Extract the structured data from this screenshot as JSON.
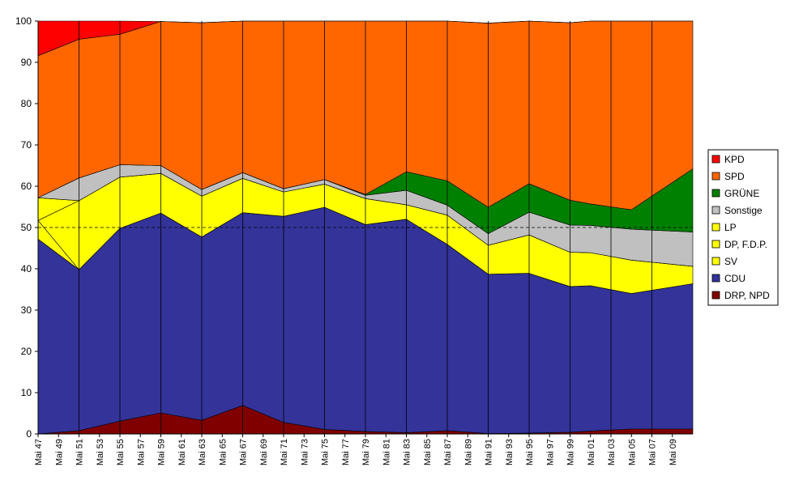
{
  "chart_data": {
    "type": "area",
    "stacked": true,
    "ylim": [
      0,
      100
    ],
    "yticks": [
      "0",
      "10",
      "20",
      "30",
      "40",
      "50",
      "60",
      "70",
      "80",
      "90",
      "100"
    ],
    "reference_line": 50,
    "x_tick_labels": [
      "Mai 47",
      "Mai 49",
      "Mai 51",
      "Mai 53",
      "Mai 55",
      "Mai 57",
      "Mai 59",
      "Mai 61",
      "Mai 63",
      "Mai 65",
      "Mai 67",
      "Mai 69",
      "Mai 71",
      "Mai 73",
      "Mai 75",
      "Mai 77",
      "Mai 79",
      "Mai 81",
      "Mai 83",
      "Mai 85",
      "Mai 87",
      "Mai 89",
      "Mai 91",
      "Mai 93",
      "Mai 95",
      "Mai 97",
      "Mai 99",
      "Mai 01",
      "Mai 03",
      "Mai 05",
      "Mai 07",
      "Mai 09"
    ],
    "x_tick_years": [
      1947,
      1949,
      1951,
      1953,
      1955,
      1957,
      1959,
      1961,
      1963,
      1965,
      1967,
      1969,
      1971,
      1973,
      1975,
      1977,
      1979,
      1981,
      1983,
      1985,
      1987,
      1989,
      1991,
      1993,
      1995,
      1997,
      1999,
      2001,
      2003,
      2005,
      2007,
      2009
    ],
    "x_domain": [
      1947,
      2011
    ],
    "election_years": [
      1947,
      1951,
      1955,
      1959,
      1963,
      1967,
      1971,
      1975,
      1979,
      1983,
      1987,
      1991,
      1995,
      1999,
      2001,
      2005,
      2011
    ],
    "legend_position": "right",
    "series": [
      {
        "name": "DRP, NPD",
        "color": "#800000",
        "values": [
          0.0,
          0.8,
          3.1,
          5.1,
          3.3,
          6.9,
          2.8,
          1.1,
          0.6,
          0.3,
          0.8,
          0.1,
          0.2,
          0.4,
          0.7,
          1.2,
          1.2
        ]
      },
      {
        "name": "CDU",
        "color": "#333399",
        "values": [
          47.2,
          39.0,
          46.7,
          48.4,
          44.4,
          46.7,
          49.9,
          53.8,
          50.1,
          51.7,
          45.1,
          38.6,
          38.7,
          35.3,
          35.2,
          32.8,
          35.2
        ]
      },
      {
        "name": "SV",
        "color": "#ffff00",
        "values": [
          4.5,
          0.0,
          0.0,
          0.0,
          0.0,
          0.0,
          0.0,
          0.0,
          0.0,
          0.0,
          0.0,
          0.0,
          0.0,
          0.0,
          0.0,
          0.0,
          0.0
        ]
      },
      {
        "name": "DP, F.D.P.",
        "color": "#ffff00",
        "values": [
          0.0,
          16.7,
          12.4,
          9.6,
          9.9,
          8.3,
          5.9,
          5.6,
          6.3,
          3.5,
          7.1,
          7.0,
          9.3,
          8.3,
          8.0,
          8.1,
          4.2
        ]
      },
      {
        "name": "LP",
        "color": "#ffff00",
        "values": [
          5.5,
          0.0,
          0.0,
          0.0,
          0.0,
          0.0,
          0.0,
          0.0,
          0.0,
          0.0,
          0.0,
          0.0,
          0.0,
          0.0,
          0.0,
          0.0,
          0.0
        ]
      },
      {
        "name": "Sonstige",
        "color": "#c0c0c0",
        "values": [
          0.0,
          5.5,
          3.0,
          1.9,
          1.6,
          1.4,
          0.8,
          1.1,
          0.8,
          3.5,
          2.4,
          2.8,
          5.5,
          6.6,
          6.6,
          7.5,
          8.3
        ]
      },
      {
        "name": "GRÜNE",
        "color": "#008000",
        "values": [
          0.0,
          0.0,
          0.0,
          0.0,
          0.0,
          0.0,
          0.0,
          0.0,
          0.2,
          4.5,
          5.9,
          6.4,
          6.9,
          6.0,
          5.2,
          4.7,
          15.3
        ]
      },
      {
        "name": "SPD",
        "color": "#ff6600",
        "values": [
          34.4,
          33.6,
          31.6,
          34.9,
          40.4,
          36.7,
          40.6,
          38.4,
          42.0,
          36.5,
          38.7,
          44.6,
          39.4,
          43.0,
          44.3,
          45.7,
          35.8
        ]
      },
      {
        "name": "KPD",
        "color": "#ff0000",
        "values": [
          8.4,
          4.4,
          3.2,
          0.0,
          0.0,
          0.0,
          0.0,
          0.0,
          0.0,
          0.0,
          0.0,
          0.0,
          0.0,
          0.0,
          0.0,
          0.0,
          0.0
        ]
      }
    ],
    "legend_order": [
      "KPD",
      "SPD",
      "GRÜNE",
      "Sonstige",
      "LP",
      "DP, F.D.P.",
      "SV",
      "CDU",
      "DRP, NPD"
    ]
  }
}
